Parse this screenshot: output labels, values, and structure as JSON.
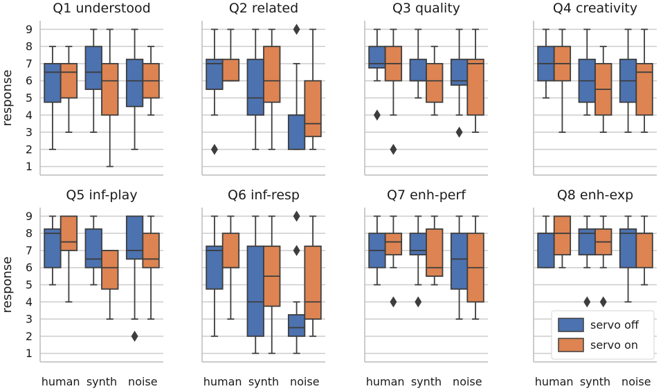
{
  "colors": {
    "servo_off": "#4c72b0",
    "servo_on": "#dd8452",
    "grid": "#cccccc",
    "edge": "#3d3d3d",
    "spine": "#bcbcbc"
  },
  "chart_data": {
    "type": "box",
    "ylabel": "response",
    "ylim": [
      0.5,
      9.5
    ],
    "yticks": [
      1,
      2,
      3,
      4,
      5,
      6,
      7,
      8,
      9
    ],
    "categories": [
      "human",
      "synth",
      "noise"
    ],
    "legend": {
      "position": "lower-right",
      "entries": [
        "servo off",
        "servo on"
      ]
    },
    "panels": [
      {
        "title": "Q1 understood",
        "boxes": {
          "servo off": [
            {
              "category": "human",
              "whislo": 2,
              "q1": 4.75,
              "med": 6.5,
              "q3": 7,
              "whishi": 8,
              "fliers": []
            },
            {
              "category": "synth",
              "whislo": 3,
              "q1": 5.5,
              "med": 6.5,
              "q3": 8,
              "whishi": 9,
              "fliers": []
            },
            {
              "category": "noise",
              "whislo": 2,
              "q1": 4.5,
              "med": 6,
              "q3": 7.25,
              "whishi": 9,
              "fliers": []
            }
          ],
          "servo on": [
            {
              "category": "human",
              "whislo": 3,
              "q1": 5,
              "med": 6.5,
              "q3": 7,
              "whishi": 8,
              "fliers": []
            },
            {
              "category": "synth",
              "whislo": 1,
              "q1": 4,
              "med": 6,
              "q3": 7,
              "whishi": 9,
              "fliers": []
            },
            {
              "category": "noise",
              "whislo": 4,
              "q1": 5,
              "med": 6,
              "q3": 7,
              "whishi": 8,
              "fliers": []
            }
          ]
        }
      },
      {
        "title": "Q2 related",
        "boxes": {
          "servo off": [
            {
              "category": "human",
              "whislo": 4,
              "q1": 5.5,
              "med": 7,
              "q3": 7.25,
              "whishi": 9,
              "fliers": [
                2
              ]
            },
            {
              "category": "synth",
              "whislo": 2,
              "q1": 4,
              "med": 5,
              "q3": 7.25,
              "whishi": 9,
              "fliers": []
            },
            {
              "category": "noise",
              "whislo": 2,
              "q1": 2,
              "med": 4,
              "q3": 4,
              "whishi": 7,
              "fliers": [
                9
              ]
            }
          ],
          "servo on": [
            {
              "category": "human",
              "whislo": 6,
              "q1": 6,
              "med": 6,
              "q3": 7.25,
              "whishi": 9,
              "fliers": []
            },
            {
              "category": "synth",
              "whislo": 2,
              "q1": 4.75,
              "med": 6,
              "q3": 8,
              "whishi": 9,
              "fliers": []
            },
            {
              "category": "noise",
              "whislo": 2,
              "q1": 2.75,
              "med": 3.5,
              "q3": 6,
              "whishi": 9,
              "fliers": []
            }
          ]
        }
      },
      {
        "title": "Q3 quality",
        "boxes": {
          "servo off": [
            {
              "category": "human",
              "whislo": 6,
              "q1": 6.75,
              "med": 7,
              "q3": 8,
              "whishi": 9,
              "fliers": [
                4
              ]
            },
            {
              "category": "synth",
              "whislo": 5,
              "q1": 6,
              "med": 6,
              "q3": 7.25,
              "whishi": 9,
              "fliers": []
            },
            {
              "category": "noise",
              "whislo": 4,
              "q1": 5.75,
              "med": 6,
              "q3": 7.25,
              "whishi": 9,
              "fliers": [
                3
              ]
            }
          ],
          "servo on": [
            {
              "category": "human",
              "whislo": 4,
              "q1": 6,
              "med": 7,
              "q3": 8,
              "whishi": 9,
              "fliers": [
                2
              ]
            },
            {
              "category": "synth",
              "whislo": 4,
              "q1": 4.75,
              "med": 6,
              "q3": 7,
              "whishi": 8,
              "fliers": []
            },
            {
              "category": "noise",
              "whislo": 3,
              "q1": 4,
              "med": 7,
              "q3": 7.25,
              "whishi": 9,
              "fliers": []
            }
          ]
        }
      },
      {
        "title": "Q4 creativity",
        "boxes": {
          "servo off": [
            {
              "category": "human",
              "whislo": 5,
              "q1": 6,
              "med": 7,
              "q3": 8,
              "whishi": 9,
              "fliers": []
            },
            {
              "category": "synth",
              "whislo": 4,
              "q1": 4.75,
              "med": 6,
              "q3": 7.25,
              "whishi": 9,
              "fliers": []
            },
            {
              "category": "noise",
              "whislo": 3,
              "q1": 4.75,
              "med": 6,
              "q3": 7.25,
              "whishi": 9,
              "fliers": []
            }
          ],
          "servo on": [
            {
              "category": "human",
              "whislo": 3,
              "q1": 6,
              "med": 7,
              "q3": 8,
              "whishi": 9,
              "fliers": []
            },
            {
              "category": "synth",
              "whislo": 3,
              "q1": 4,
              "med": 5.5,
              "q3": 7,
              "whishi": 8,
              "fliers": []
            },
            {
              "category": "noise",
              "whislo": 3,
              "q1": 4,
              "med": 6.5,
              "q3": 7,
              "whishi": 9,
              "fliers": []
            }
          ]
        }
      },
      {
        "title": "Q5 inf-play",
        "boxes": {
          "servo off": [
            {
              "category": "human",
              "whislo": 5,
              "q1": 6,
              "med": 8,
              "q3": 8.25,
              "whishi": 9,
              "fliers": []
            },
            {
              "category": "synth",
              "whislo": 5,
              "q1": 6,
              "med": 6.5,
              "q3": 8.25,
              "whishi": 9,
              "fliers": []
            },
            {
              "category": "noise",
              "whislo": 3,
              "q1": 6.5,
              "med": 7,
              "q3": 9,
              "whishi": 9,
              "fliers": [
                2
              ]
            }
          ],
          "servo on": [
            {
              "category": "human",
              "whislo": 4,
              "q1": 7,
              "med": 7.5,
              "q3": 9,
              "whishi": 9,
              "fliers": []
            },
            {
              "category": "synth",
              "whislo": 3,
              "q1": 4.75,
              "med": 6,
              "q3": 7,
              "whishi": 7,
              "fliers": []
            },
            {
              "category": "noise",
              "whislo": 3,
              "q1": 6,
              "med": 6.5,
              "q3": 8,
              "whishi": 9,
              "fliers": []
            }
          ]
        }
      },
      {
        "title": "Q6 inf-resp",
        "boxes": {
          "servo off": [
            {
              "category": "human",
              "whislo": 2,
              "q1": 4.75,
              "med": 7,
              "q3": 7.25,
              "whishi": 9,
              "fliers": []
            },
            {
              "category": "synth",
              "whislo": 1,
              "q1": 2,
              "med": 4,
              "q3": 7.25,
              "whishi": 9,
              "fliers": []
            },
            {
              "category": "noise",
              "whislo": 1,
              "q1": 2,
              "med": 2.5,
              "q3": 3.25,
              "whishi": 4,
              "fliers": [
                7,
                9
              ]
            }
          ],
          "servo on": [
            {
              "category": "human",
              "whislo": 3,
              "q1": 6,
              "med": 6,
              "q3": 8,
              "whishi": 9,
              "fliers": []
            },
            {
              "category": "synth",
              "whislo": 1,
              "q1": 3.75,
              "med": 5.5,
              "q3": 7.25,
              "whishi": 9,
              "fliers": []
            },
            {
              "category": "noise",
              "whislo": 2,
              "q1": 3,
              "med": 4,
              "q3": 7.25,
              "whishi": 9,
              "fliers": []
            }
          ]
        }
      },
      {
        "title": "Q7 enh-perf",
        "boxes": {
          "servo off": [
            {
              "category": "human",
              "whislo": 5,
              "q1": 6,
              "med": 7,
              "q3": 8,
              "whishi": 9,
              "fliers": []
            },
            {
              "category": "synth",
              "whislo": 5,
              "q1": 6.75,
              "med": 7,
              "q3": 8,
              "whishi": 9,
              "fliers": [
                4
              ]
            },
            {
              "category": "noise",
              "whislo": 3,
              "q1": 4.75,
              "med": 6.5,
              "q3": 8,
              "whishi": 9,
              "fliers": []
            }
          ],
          "servo on": [
            {
              "category": "human",
              "whislo": 6,
              "q1": 6.75,
              "med": 7.5,
              "q3": 8,
              "whishi": 9,
              "fliers": [
                4
              ]
            },
            {
              "category": "synth",
              "whislo": 5,
              "q1": 5.5,
              "med": 6,
              "q3": 8.25,
              "whishi": 9,
              "fliers": []
            },
            {
              "category": "noise",
              "whislo": 3,
              "q1": 4,
              "med": 6,
              "q3": 8,
              "whishi": 9,
              "fliers": []
            }
          ]
        }
      },
      {
        "title": "Q8 enh-exp",
        "boxes": {
          "servo off": [
            {
              "category": "human",
              "whislo": 6,
              "q1": 6,
              "med": 8,
              "q3": 8,
              "whishi": 9,
              "fliers": []
            },
            {
              "category": "synth",
              "whislo": 6,
              "q1": 6.75,
              "med": 8,
              "q3": 8.25,
              "whishi": 9,
              "fliers": [
                4
              ]
            },
            {
              "category": "noise",
              "whislo": 4,
              "q1": 6,
              "med": 8,
              "q3": 8.25,
              "whishi": 9,
              "fliers": []
            }
          ],
          "servo on": [
            {
              "category": "human",
              "whislo": 6,
              "q1": 6.75,
              "med": 8,
              "q3": 9,
              "whishi": 9,
              "fliers": []
            },
            {
              "category": "synth",
              "whislo": 6,
              "q1": 6.75,
              "med": 7.5,
              "q3": 8.25,
              "whishi": 9,
              "fliers": [
                4
              ]
            },
            {
              "category": "noise",
              "whislo": 5,
              "q1": 6,
              "med": 8,
              "q3": 8,
              "whishi": 9,
              "fliers": []
            }
          ]
        }
      }
    ]
  }
}
